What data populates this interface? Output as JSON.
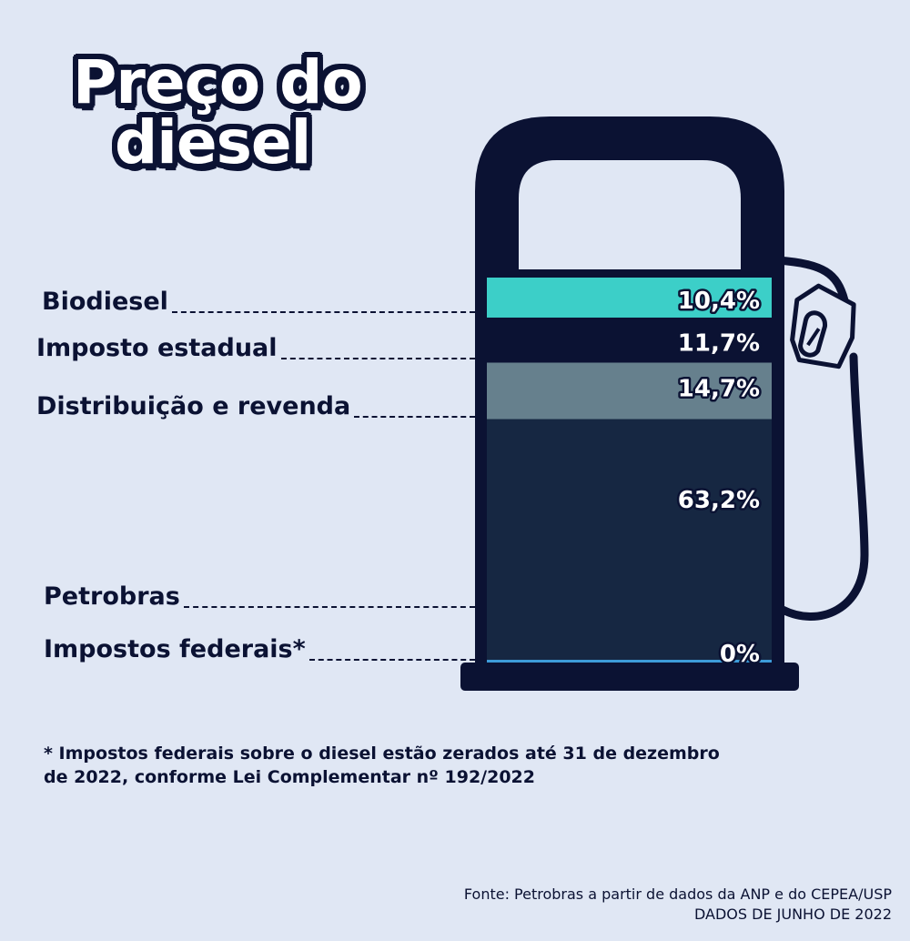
{
  "chart_data": {
    "type": "bar",
    "title": "Preço do diesel",
    "title_lines": [
      "Preço do",
      "diesel"
    ],
    "categories": [
      "Biodiesel",
      "Imposto estadual",
      "Distribuição e revenda",
      "Petrobras",
      "Impostos federais*"
    ],
    "values": [
      10.4,
      11.7,
      14.7,
      63.2,
      0
    ],
    "value_labels": [
      "10,4%",
      "11,7%",
      "14,7%",
      "63,2%",
      "0%"
    ],
    "colors": [
      "#3ccfc8",
      "#0b1233",
      "#66808d",
      "#162742",
      "#3d9bd8"
    ],
    "stacked": true,
    "unit": "%",
    "footnote": "* Impostos federais sobre o diesel estão zerados até 31 de dezembro de 2022, conforme Lei Complementar nº 192/2022",
    "source_lines": [
      "Fonte: Petrobras a partir de dados da ANP e do CEPEA/USP",
      "DADOS DE JUNHO DE 2022"
    ]
  }
}
